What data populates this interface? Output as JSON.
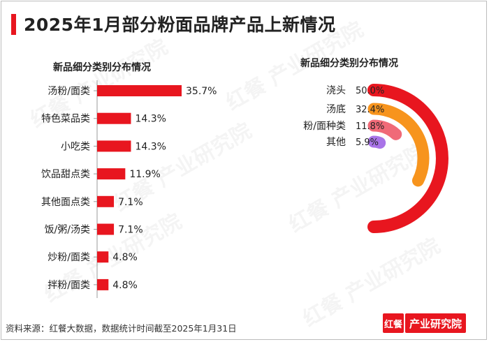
{
  "header": {
    "title": "2025年1月部分粉面品牌产品上新情况"
  },
  "watermark": "红餐 产业研究院",
  "footer": {
    "source": "资料来源：红餐大数据，数据统计时间截至2025年1月31日",
    "logo_mark": "红餐",
    "logo_text": "产业研究院"
  },
  "colors": {
    "accent": "#e8161f",
    "bar": "#e8161f"
  },
  "chart_data": [
    {
      "type": "bar",
      "orientation": "horizontal",
      "title": "新品细分类别分布情况",
      "categories": [
        "汤粉/面类",
        "特色菜品类",
        "小吃类",
        "饮品甜点类",
        "其他面点类",
        "饭/粥/汤类",
        "炒粉/面类",
        "拌粉/面类"
      ],
      "values": [
        35.7,
        14.3,
        14.3,
        11.9,
        7.1,
        7.1,
        4.8,
        4.8
      ],
      "value_suffix": "%",
      "xlabel": "",
      "ylabel": "",
      "xlim": [
        0,
        35.7
      ]
    },
    {
      "type": "radial_bar",
      "title": "新品细分类别分布情况",
      "categories": [
        "浇头",
        "汤底",
        "粉/面种类",
        "其他"
      ],
      "values": [
        50.0,
        32.4,
        11.8,
        5.9
      ],
      "value_labels": [
        "50.0%",
        "32.4%",
        "11.8%",
        "5.9%"
      ],
      "colors": [
        "#e8161f",
        "#f7941d",
        "#f06a78",
        "#a974e8"
      ],
      "full_scale": 50.0
    }
  ]
}
